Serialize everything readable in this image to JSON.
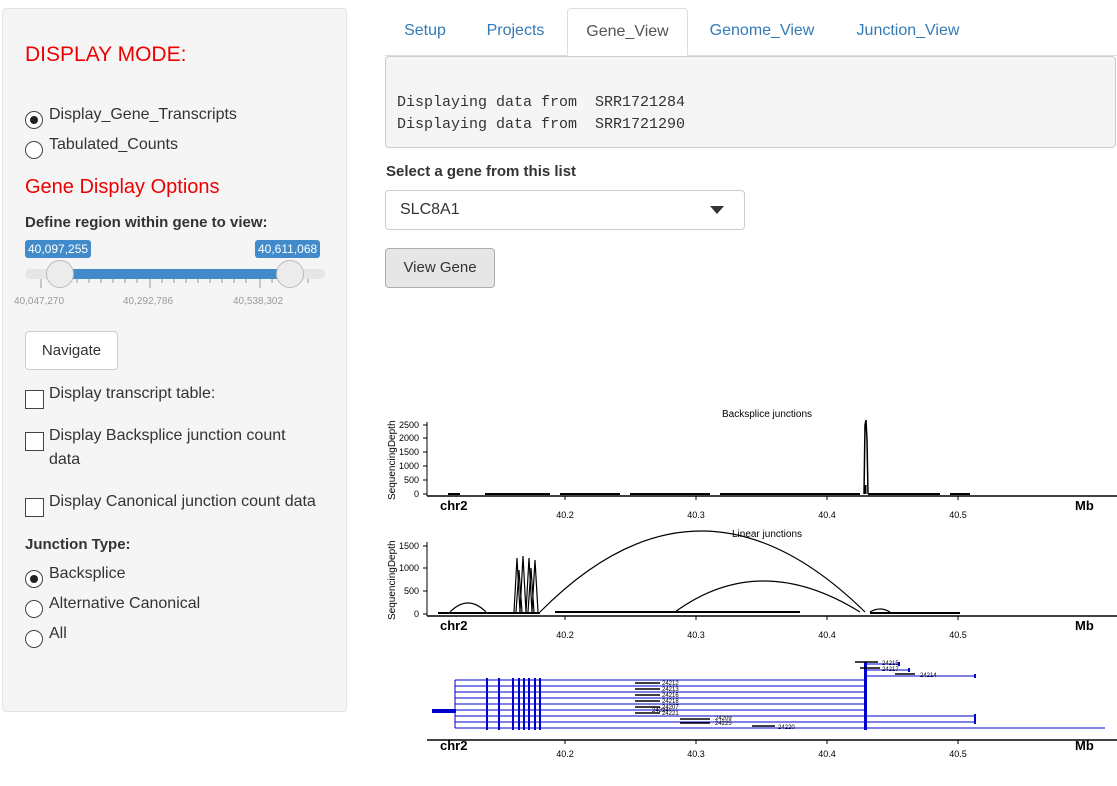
{
  "sidebar": {
    "display_mode_title": "DISPLAY MODE:",
    "display_mode_options": [
      "Display_Gene_Transcripts",
      "Tabulated_Counts"
    ],
    "gene_display_title": "Gene Display Options",
    "region_label": "Define region within gene to view:",
    "slider": {
      "min_label": "40,097,255",
      "max_label": "40,611,068",
      "ticks": [
        "40,047,270",
        "40,292,786",
        "40,538,302"
      ]
    },
    "navigate_label": "Navigate",
    "checkboxes": [
      "Display transcript table:",
      "Display Backsplice junction count",
      "data",
      "Display Canonical junction count data"
    ],
    "junction_type_label": "Junction Type:",
    "junction_options": [
      "Backsplice",
      "Alternative Canonical",
      "All"
    ]
  },
  "tabs": [
    "Setup",
    "Projects",
    "Gene_View",
    "Genome_View",
    "Junction_View"
  ],
  "console": {
    "lines": [
      "Displaying data from  SRR1721284",
      "Displaying data from  SRR1721290"
    ]
  },
  "gene_select": {
    "label": "Select a gene from this list",
    "value": "SLC8A1"
  },
  "view_gene_label": "View Gene",
  "plots": {
    "chrom": "chr2",
    "unit": "Mb",
    "x_ticks": [
      "40.2",
      "40.3",
      "40.4",
      "40.5"
    ],
    "ylabel": "SequencingDepth",
    "backsplice": {
      "title": "Backsplice junctions",
      "y_ticks": [
        "2500",
        "2000",
        "1500",
        "1000",
        "500",
        "0"
      ]
    },
    "linear": {
      "title": "Linear junctions",
      "y_ticks": [
        "1500",
        "1000",
        "500",
        "0"
      ]
    },
    "transcript_ids": [
      "24212",
      "24213",
      "24216",
      "24218",
      "24207",
      "24221",
      "24224",
      "24215",
      "24217",
      "24214",
      "24209",
      "24225",
      "24220"
    ]
  },
  "colors": {
    "accent": "#337ab7",
    "slider": "#428bca",
    "red": "#e00000",
    "transcript": "#0000cc"
  }
}
